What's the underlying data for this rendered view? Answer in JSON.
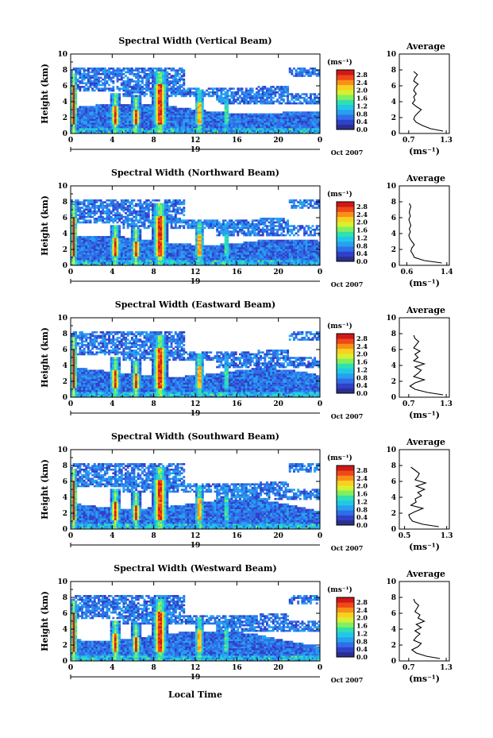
{
  "chart_data": {
    "type": "heatmap",
    "colorbar": {
      "unit": "(ms⁻¹)",
      "ticks": [
        "0.0",
        "0.4",
        "0.8",
        "1.2",
        "1.6",
        "2.0",
        "2.4",
        "2.8"
      ],
      "range": [
        0.0,
        2.8
      ]
    },
    "x_axis": {
      "label": "Local Time",
      "ticks": [
        "0",
        "4",
        "8",
        "12",
        "16",
        "20",
        "0"
      ],
      "range": [
        0,
        24
      ],
      "day": "19",
      "month": "Oct 2007"
    },
    "y_axis": {
      "label": "Height (km)",
      "ticks": [
        "0",
        "2",
        "4",
        "6",
        "8",
        "10"
      ],
      "range": [
        0,
        10
      ]
    },
    "average_panel": {
      "title": "Average",
      "xlabel": "(ms⁻¹)",
      "heights": [
        0.3,
        0.6,
        1.0,
        1.4,
        1.8,
        2.2,
        2.6,
        3.0,
        3.4,
        3.8,
        4.2,
        4.6,
        5.0,
        5.4,
        5.8,
        6.2,
        6.6,
        7.0,
        7.4,
        7.8
      ]
    },
    "panels": [
      {
        "title": "Spectral Width (Vertical Beam)",
        "avg_ticks": [
          "0.7",
          "1.3"
        ],
        "avg_range": [
          0.55,
          1.35
        ],
        "avg_values": [
          1.25,
          1.05,
          0.92,
          0.82,
          0.78,
          0.8,
          0.85,
          0.9,
          0.82,
          0.76,
          0.8,
          0.78,
          0.82,
          0.78,
          0.8,
          0.85,
          0.78,
          0.8,
          0.84,
          0.78
        ]
      },
      {
        "title": "Spectral Width (Northward Beam)",
        "avg_ticks": [
          "0.6",
          "1.4"
        ],
        "avg_range": [
          0.45,
          1.45
        ],
        "avg_values": [
          1.3,
          0.95,
          0.75,
          0.72,
          0.68,
          0.7,
          0.75,
          0.7,
          0.66,
          0.64,
          0.67,
          0.65,
          0.68,
          0.66,
          0.64,
          0.67,
          0.65,
          0.66,
          0.68,
          0.65
        ]
      },
      {
        "title": "Spectral Width (Eastward Beam)",
        "avg_ticks": [
          "0.7",
          "1.3"
        ],
        "avg_range": [
          0.55,
          1.35
        ],
        "avg_values": [
          1.25,
          1.0,
          0.8,
          0.72,
          0.8,
          0.95,
          0.78,
          0.85,
          0.9,
          0.8,
          0.95,
          0.78,
          0.85,
          0.8,
          0.88,
          0.78,
          0.82,
          0.86,
          0.8,
          0.78
        ]
      },
      {
        "title": "Spectral Width (Southward Beam)",
        "avg_ticks": [
          "0.5",
          "1.3"
        ],
        "avg_range": [
          0.4,
          1.35
        ],
        "avg_values": [
          1.15,
          0.85,
          0.65,
          0.6,
          0.58,
          0.7,
          0.85,
          0.62,
          0.72,
          0.7,
          0.82,
          0.75,
          0.88,
          0.72,
          0.9,
          0.7,
          0.75,
          0.78,
          0.7,
          0.62
        ]
      },
      {
        "title": "Spectral Width (Westward Beam)",
        "avg_ticks": [
          "0.7",
          "1.3"
        ],
        "avg_range": [
          0.55,
          1.35
        ],
        "avg_values": [
          1.2,
          0.98,
          0.82,
          0.75,
          0.85,
          0.9,
          0.78,
          0.82,
          0.88,
          0.8,
          0.9,
          0.82,
          0.95,
          0.85,
          0.88,
          0.8,
          0.83,
          0.86,
          0.8,
          0.78
        ]
      }
    ]
  },
  "colors": {
    "scale": [
      "#2a2f8f",
      "#3040c8",
      "#2f6ee8",
      "#26a0f0",
      "#20c8e8",
      "#30e0b0",
      "#80f060",
      "#d8f030",
      "#f8d020",
      "#f89018",
      "#f04818",
      "#d01818"
    ]
  }
}
